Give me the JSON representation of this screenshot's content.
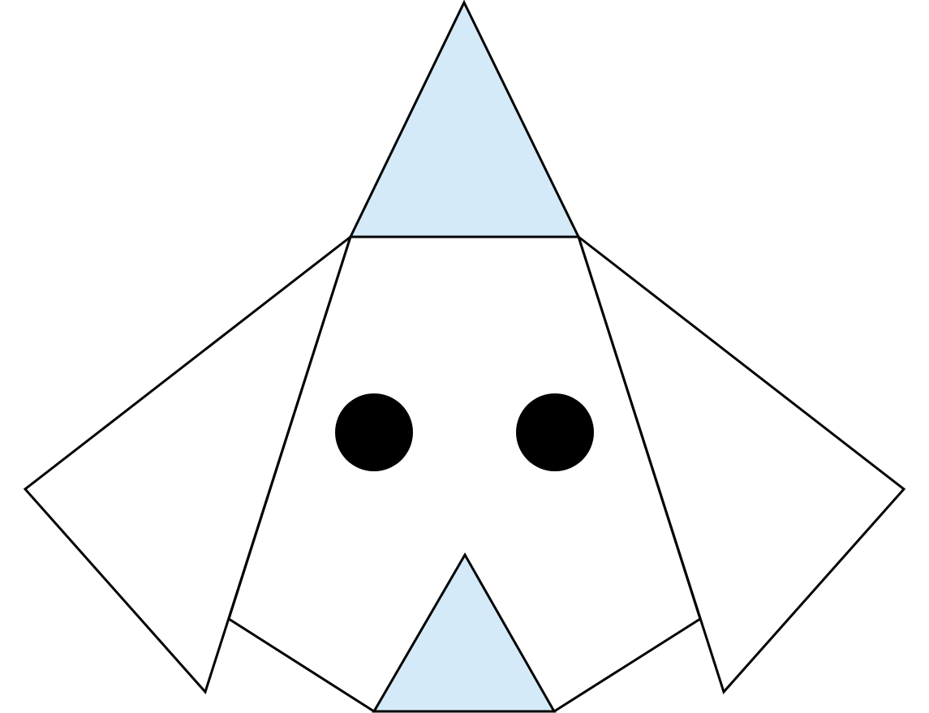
{
  "figure": {
    "colors": {
      "background": "#ffffff",
      "outline": "#000000",
      "accent_fill": "#d4eaf8",
      "eye_fill": "#000000"
    },
    "shapes": [
      "left-ear-triangle",
      "right-ear-triangle",
      "face-trapezoid",
      "hat-triangle",
      "left-eye-circle",
      "right-eye-circle",
      "nose-triangle"
    ]
  }
}
